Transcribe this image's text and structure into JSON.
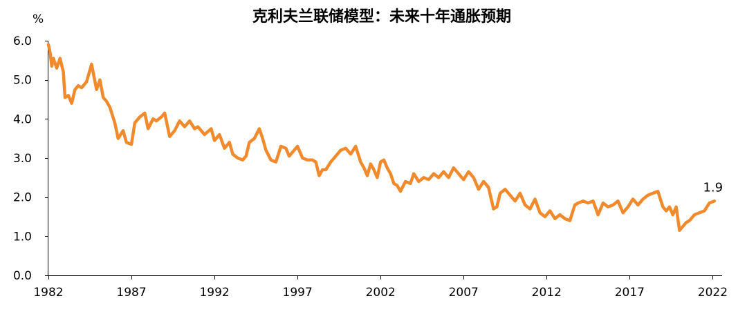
{
  "chart_data": {
    "type": "line",
    "title": "克利夫兰联储模型：未来十年通胀预期",
    "ylabel": "%",
    "xlabel": "",
    "xlim": [
      1982.0,
      2022.4
    ],
    "ylim": [
      0,
      6
    ],
    "y_ticks": [
      "0.0",
      "1.0",
      "2.0",
      "3.0",
      "4.0",
      "5.0",
      "6.0"
    ],
    "x_ticks": [
      "1982",
      "1987",
      "1992",
      "1997",
      "2002",
      "2007",
      "2012",
      "2017",
      "2022"
    ],
    "grid": false,
    "legend": "none",
    "annotations": [
      {
        "text": "1.9",
        "x": 2022.1,
        "y": 1.9
      }
    ],
    "series": [
      {
        "color": "#F08A2C",
        "x": [
          1982.0,
          1982.1,
          1982.2,
          1982.3,
          1982.5,
          1982.7,
          1982.9,
          1983.0,
          1983.2,
          1983.4,
          1983.6,
          1983.8,
          1984.0,
          1984.3,
          1984.6,
          1984.9,
          1985.1,
          1985.3,
          1985.5,
          1985.7,
          1986.0,
          1986.2,
          1986.5,
          1986.7,
          1987.0,
          1987.2,
          1987.5,
          1987.8,
          1988.0,
          1988.3,
          1988.5,
          1988.8,
          1989.0,
          1989.3,
          1989.6,
          1989.9,
          1990.2,
          1990.5,
          1990.8,
          1991.0,
          1991.4,
          1991.8,
          1992.0,
          1992.3,
          1992.6,
          1992.9,
          1993.1,
          1993.4,
          1993.7,
          1993.9,
          1994.1,
          1994.4,
          1994.7,
          1994.9,
          1995.1,
          1995.4,
          1995.7,
          1996.0,
          1996.3,
          1996.5,
          1996.8,
          1997.0,
          1997.3,
          1997.6,
          1997.9,
          1998.1,
          1998.3,
          1998.5,
          1998.7,
          1999.0,
          1999.3,
          1999.6,
          1999.9,
          2000.2,
          2000.5,
          2000.8,
          2001.0,
          2001.2,
          2001.4,
          2001.6,
          2001.8,
          2002.0,
          2002.2,
          2002.4,
          2002.6,
          2002.8,
          2003.0,
          2003.2,
          2003.5,
          2003.8,
          2004.0,
          2004.3,
          2004.6,
          2004.9,
          2005.2,
          2005.5,
          2005.8,
          2006.1,
          2006.4,
          2006.7,
          2007.0,
          2007.3,
          2007.6,
          2007.9,
          2008.2,
          2008.5,
          2008.8,
          2009.0,
          2009.2,
          2009.5,
          2009.8,
          2010.1,
          2010.4,
          2010.7,
          2011.0,
          2011.3,
          2011.6,
          2011.9,
          2012.2,
          2012.5,
          2012.8,
          2013.1,
          2013.4,
          2013.7,
          2013.9,
          2014.2,
          2014.5,
          2014.8,
          2015.1,
          2015.4,
          2015.7,
          2016.0,
          2016.3,
          2016.6,
          2016.9,
          2017.2,
          2017.5,
          2017.8,
          2018.1,
          2018.4,
          2018.7,
          2019.0,
          2019.2,
          2019.4,
          2019.6,
          2019.8,
          2020.0,
          2020.2,
          2020.4,
          2020.6,
          2020.9,
          2021.2,
          2021.5,
          2021.8,
          2022.1
        ],
        "y": [
          5.9,
          5.7,
          5.35,
          5.55,
          5.3,
          5.55,
          5.2,
          4.55,
          4.6,
          4.4,
          4.75,
          4.85,
          4.8,
          4.95,
          5.4,
          4.75,
          5.0,
          4.55,
          4.45,
          4.3,
          3.9,
          3.5,
          3.7,
          3.4,
          3.35,
          3.9,
          4.05,
          4.15,
          3.75,
          4.0,
          3.95,
          4.05,
          4.15,
          3.55,
          3.7,
          3.95,
          3.8,
          3.95,
          3.75,
          3.8,
          3.6,
          3.75,
          3.45,
          3.6,
          3.25,
          3.4,
          3.1,
          3.0,
          2.95,
          3.05,
          3.4,
          3.5,
          3.75,
          3.5,
          3.2,
          2.95,
          2.9,
          3.3,
          3.25,
          3.05,
          3.2,
          3.3,
          3.0,
          2.95,
          2.95,
          2.9,
          2.55,
          2.7,
          2.7,
          2.9,
          3.05,
          3.2,
          3.25,
          3.1,
          3.3,
          2.9,
          2.75,
          2.55,
          2.85,
          2.7,
          2.5,
          2.9,
          2.95,
          2.75,
          2.6,
          2.35,
          2.3,
          2.15,
          2.4,
          2.35,
          2.6,
          2.4,
          2.5,
          2.45,
          2.6,
          2.5,
          2.65,
          2.5,
          2.75,
          2.6,
          2.45,
          2.65,
          2.5,
          2.2,
          2.4,
          2.25,
          1.7,
          1.75,
          2.1,
          2.2,
          2.05,
          1.9,
          2.1,
          1.8,
          1.7,
          1.95,
          1.6,
          1.5,
          1.65,
          1.45,
          1.55,
          1.45,
          1.4,
          1.8,
          1.85,
          1.9,
          1.85,
          1.9,
          1.55,
          1.85,
          1.75,
          1.8,
          1.9,
          1.6,
          1.75,
          1.95,
          1.8,
          1.95,
          2.05,
          2.1,
          2.15,
          1.75,
          1.65,
          1.75,
          1.55,
          1.75,
          1.15,
          1.25,
          1.35,
          1.4,
          1.55,
          1.6,
          1.65,
          1.85,
          1.9
        ]
      }
    ]
  }
}
